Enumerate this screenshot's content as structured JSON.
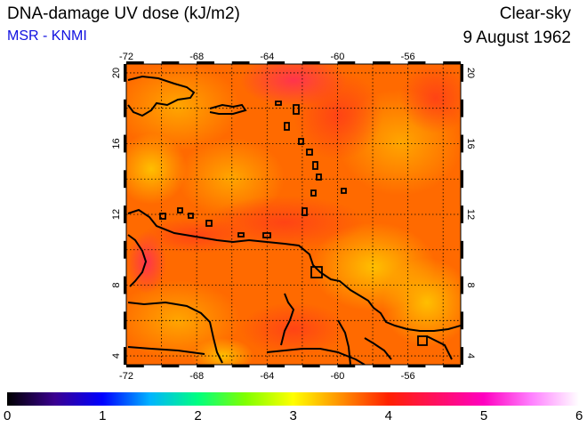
{
  "title": "DNA-damage UV dose (kJ/m2)",
  "source": "MSR - KNMI",
  "condition": "Clear-sky",
  "date": "9 August 1962",
  "map": {
    "lon_ticks": [
      "-72",
      "-68",
      "-64",
      "-60",
      "-56"
    ],
    "lat_ticks": [
      "4",
      "8",
      "12",
      "16",
      "20"
    ],
    "field_colors": [
      "#ff5a00",
      "#ff8c00",
      "#ff3a1a",
      "#ffb000",
      "#ff2a5a"
    ]
  },
  "colorbar": {
    "labels": [
      "0",
      "1",
      "2",
      "3",
      "4",
      "5",
      "6"
    ],
    "stops": [
      "#000000",
      "#3a0090",
      "#0000ff",
      "#00b4ff",
      "#00ff80",
      "#80ff00",
      "#ffff00",
      "#ff9000",
      "#ff2000",
      "#ff1060",
      "#ff00c0",
      "#ff80ff",
      "#ffffff"
    ]
  }
}
